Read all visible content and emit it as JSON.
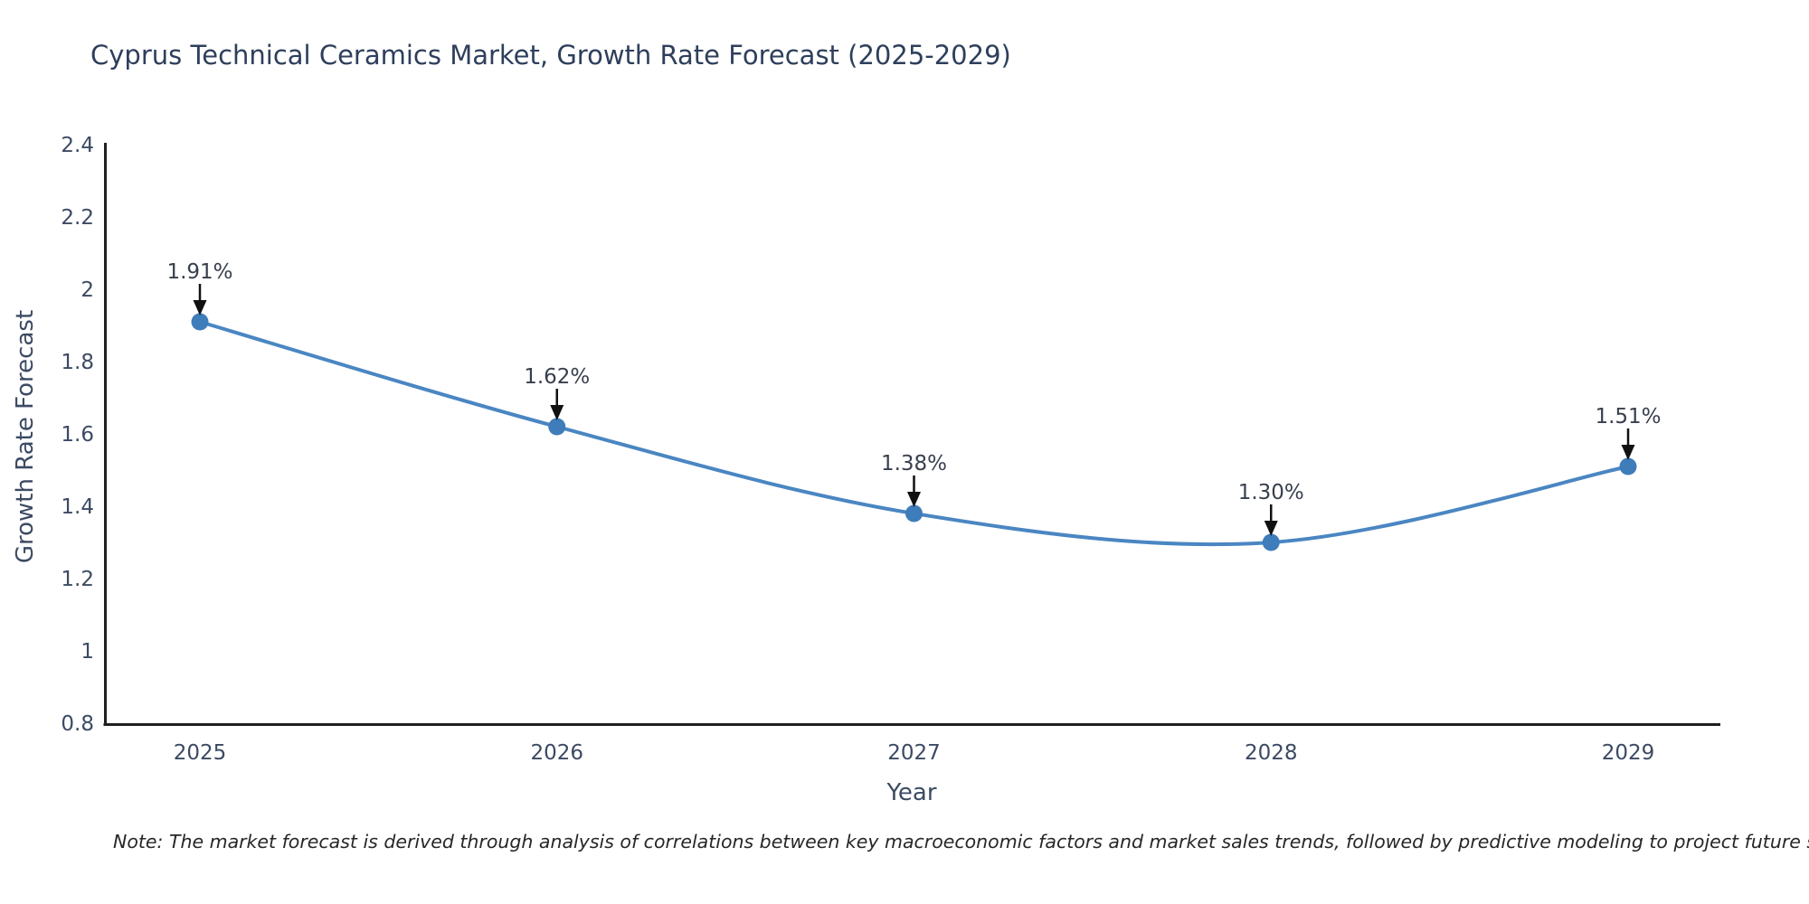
{
  "title": "Cyprus Technical Ceramics Market, Growth Rate Forecast (2025-2029)",
  "note": "Note: The market forecast is derived through analysis of correlations between key macroeconomic factors and market sales trends, followed by predictive modeling to project future sales",
  "chart_data": {
    "type": "line",
    "title": "Cyprus Technical Ceramics Market, Growth Rate Forecast (2025-2029)",
    "xlabel": "Year",
    "ylabel": "Growth Rate Forecast",
    "x": [
      2025,
      2026,
      2027,
      2028,
      2029
    ],
    "series": [
      {
        "name": "Growth Rate Forecast",
        "values": [
          1.91,
          1.62,
          1.38,
          1.3,
          1.51
        ]
      }
    ],
    "point_labels": [
      "1.91%",
      "1.62%",
      "1.38%",
      "1.30%",
      "1.51%"
    ],
    "ylim": [
      0.8,
      2.4
    ],
    "yticks": [
      0.8,
      1.0,
      1.2,
      1.4,
      1.6,
      1.8,
      2.0,
      2.2,
      2.4
    ],
    "ytick_labels": [
      "0.8",
      "1",
      "1.2",
      "1.4",
      "1.6",
      "1.8",
      "2",
      "2.2",
      "2.4"
    ],
    "xtick_labels": [
      "2025",
      "2026",
      "2027",
      "2028",
      "2029"
    ],
    "line_shape": "spline",
    "grid": false,
    "legend": "none",
    "colors": {
      "line": "#4a86c2",
      "marker": "#3f7cba",
      "axis": "#1f1f1f",
      "annotation_arrow": "#111111"
    }
  }
}
